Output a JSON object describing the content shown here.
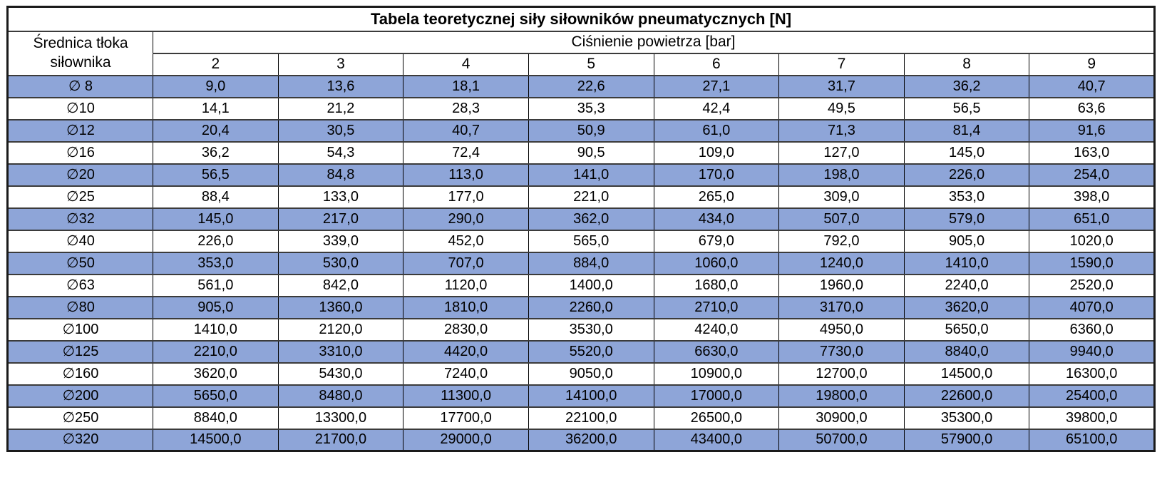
{
  "table": {
    "title": "Tabela teoretycznej siły siłowników pneumatycznych [N]",
    "corner_header": "Średnica tłoka siłownika",
    "group_header": "Ciśnienie powietrza [bar]",
    "pressures": [
      "2",
      "3",
      "4",
      "5",
      "6",
      "7",
      "8",
      "9"
    ],
    "rows": [
      {
        "diameter": "∅ 8",
        "values": [
          "9,0",
          "13,6",
          "18,1",
          "22,6",
          "27,1",
          "31,7",
          "36,2",
          "40,7"
        ]
      },
      {
        "diameter": "∅10",
        "values": [
          "14,1",
          "21,2",
          "28,3",
          "35,3",
          "42,4",
          "49,5",
          "56,5",
          "63,6"
        ]
      },
      {
        "diameter": "∅12",
        "values": [
          "20,4",
          "30,5",
          "40,7",
          "50,9",
          "61,0",
          "71,3",
          "81,4",
          "91,6"
        ]
      },
      {
        "diameter": "∅16",
        "values": [
          "36,2",
          "54,3",
          "72,4",
          "90,5",
          "109,0",
          "127,0",
          "145,0",
          "163,0"
        ]
      },
      {
        "diameter": "∅20",
        "values": [
          "56,5",
          "84,8",
          "113,0",
          "141,0",
          "170,0",
          "198,0",
          "226,0",
          "254,0"
        ]
      },
      {
        "diameter": "∅25",
        "values": [
          "88,4",
          "133,0",
          "177,0",
          "221,0",
          "265,0",
          "309,0",
          "353,0",
          "398,0"
        ]
      },
      {
        "diameter": "∅32",
        "values": [
          "145,0",
          "217,0",
          "290,0",
          "362,0",
          "434,0",
          "507,0",
          "579,0",
          "651,0"
        ]
      },
      {
        "diameter": "∅40",
        "values": [
          "226,0",
          "339,0",
          "452,0",
          "565,0",
          "679,0",
          "792,0",
          "905,0",
          "1020,0"
        ]
      },
      {
        "diameter": "∅50",
        "values": [
          "353,0",
          "530,0",
          "707,0",
          "884,0",
          "1060,0",
          "1240,0",
          "1410,0",
          "1590,0"
        ]
      },
      {
        "diameter": "∅63",
        "values": [
          "561,0",
          "842,0",
          "1120,0",
          "1400,0",
          "1680,0",
          "1960,0",
          "2240,0",
          "2520,0"
        ]
      },
      {
        "diameter": "∅80",
        "values": [
          "905,0",
          "1360,0",
          "1810,0",
          "2260,0",
          "2710,0",
          "3170,0",
          "3620,0",
          "4070,0"
        ]
      },
      {
        "diameter": "∅100",
        "values": [
          "1410,0",
          "2120,0",
          "2830,0",
          "3530,0",
          "4240,0",
          "4950,0",
          "5650,0",
          "6360,0"
        ]
      },
      {
        "diameter": "∅125",
        "values": [
          "2210,0",
          "3310,0",
          "4420,0",
          "5520,0",
          "6630,0",
          "7730,0",
          "8840,0",
          "9940,0"
        ]
      },
      {
        "diameter": "∅160",
        "values": [
          "3620,0",
          "5430,0",
          "7240,0",
          "9050,0",
          "10900,0",
          "12700,0",
          "14500,0",
          "16300,0"
        ]
      },
      {
        "diameter": "∅200",
        "values": [
          "5650,0",
          "8480,0",
          "11300,0",
          "14100,0",
          "17000,0",
          "19800,0",
          "22600,0",
          "25400,0"
        ]
      },
      {
        "diameter": "∅250",
        "values": [
          "8840,0",
          "13300,0",
          "17700,0",
          "22100,0",
          "26500,0",
          "30900,0",
          "35300,0",
          "39800,0"
        ]
      },
      {
        "diameter": "∅320",
        "values": [
          "14500,0",
          "21700,0",
          "29000,0",
          "36200,0",
          "43400,0",
          "50700,0",
          "57900,0",
          "65100,0"
        ]
      }
    ],
    "colors": {
      "row_highlight": "#8EA5D8",
      "row_plain": "#FFFFFF",
      "border": "#000000",
      "text": "#000000"
    }
  }
}
